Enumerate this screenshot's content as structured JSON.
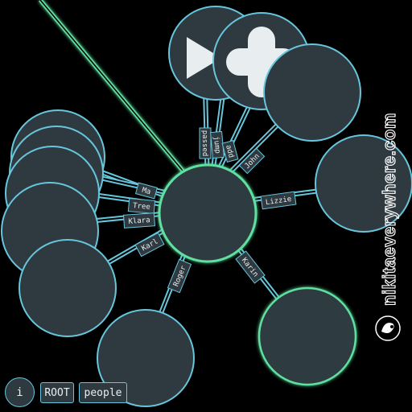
{
  "graph": {
    "edges": [
      {
        "id": "passed",
        "label": "passed"
      },
      {
        "id": "jump",
        "label": "jump"
      },
      {
        "id": "add",
        "label": "add"
      },
      {
        "id": "john",
        "label": "John"
      },
      {
        "id": "lizzie",
        "label": "Lizzie"
      },
      {
        "id": "karin",
        "label": "Karin"
      },
      {
        "id": "roger",
        "label": "Roger"
      },
      {
        "id": "karl",
        "label": "Karl"
      },
      {
        "id": "klara",
        "label": "Klara"
      },
      {
        "id": "tree",
        "label": "Tree"
      },
      {
        "id": "ma",
        "label": "Ma"
      }
    ]
  },
  "toolbar": {
    "info_label": "i",
    "breadcrumbs": [
      "ROOT",
      "people"
    ]
  },
  "watermark": {
    "text": "nikitaeverywhere.com"
  },
  "colors": {
    "background": "#000000",
    "node_fill": "#2f3a40",
    "node_stroke": "#66c6dc",
    "selected_stroke": "#5ee0a0"
  }
}
